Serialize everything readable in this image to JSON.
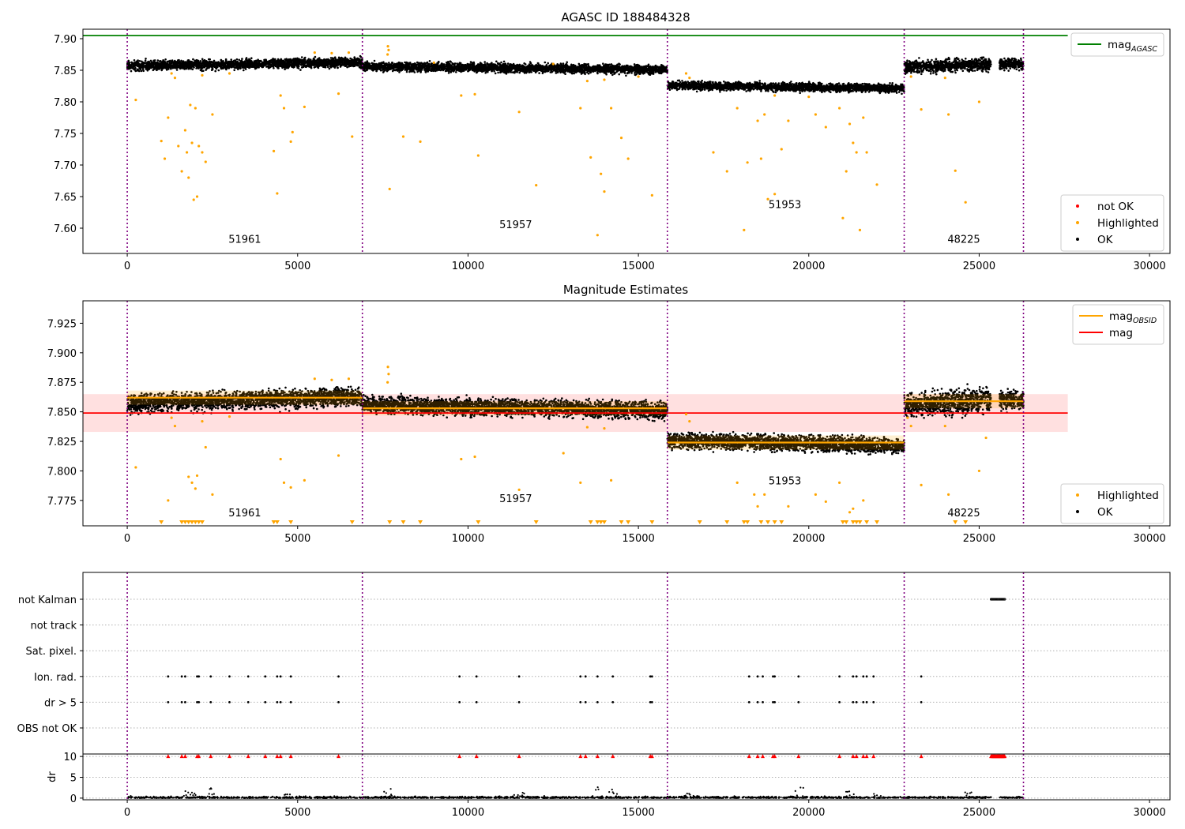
{
  "chart_data": [
    {
      "type": "scatter",
      "title": "AGASC ID 188484328",
      "xlabel": "",
      "ylabel": "",
      "xlim": [
        -1300,
        30600
      ],
      "ylim": [
        7.56,
        7.915
      ],
      "xticks": [
        0,
        5000,
        10000,
        15000,
        20000,
        25000,
        30000
      ],
      "yticks": [
        7.6,
        7.65,
        7.7,
        7.75,
        7.8,
        7.85,
        7.9
      ],
      "ytick_labels": [
        "7.60",
        "7.65",
        "7.70",
        "7.75",
        "7.80",
        "7.85",
        "7.90"
      ],
      "grid": false,
      "hlines": [
        {
          "name": "mag",
          "sub": "AGASC",
          "y": 7.905,
          "x_from": -1300,
          "x_to": 27600,
          "color": "#008000"
        }
      ],
      "obs_boundaries": [
        0,
        6900,
        15850,
        22800,
        26300
      ],
      "obs_labels": [
        {
          "text": "51961",
          "x": 3450,
          "y": 7.577
        },
        {
          "text": "51957",
          "x": 11400,
          "y": 7.6
        },
        {
          "text": "51953",
          "x": 19300,
          "y": 7.632
        },
        {
          "text": "48225",
          "x": 24550,
          "y": 7.577
        }
      ],
      "ok_segments": [
        {
          "x_start": 0,
          "x_end": 6900,
          "mean_start": 7.857,
          "mean_end": 7.863,
          "half_width": 0.013
        },
        {
          "x_start": 6900,
          "x_end": 15850,
          "mean_start": 7.856,
          "mean_end": 7.851,
          "half_width": 0.012
        },
        {
          "x_start": 15850,
          "x_end": 22800,
          "mean_start": 7.826,
          "mean_end": 7.821,
          "half_width": 0.011
        },
        {
          "x_start": 22800,
          "x_end": 25350,
          "mean_start": 7.855,
          "mean_end": 7.86,
          "half_width": 0.017
        },
        {
          "x_start": 25600,
          "x_end": 26300,
          "mean_start": 7.86,
          "mean_end": 7.86,
          "half_width": 0.014
        }
      ],
      "highlighted_points": [
        [
          1000,
          7.738
        ],
        [
          1100,
          7.71
        ],
        [
          1200,
          7.775
        ],
        [
          1500,
          7.73
        ],
        [
          1600,
          7.69
        ],
        [
          1700,
          7.755
        ],
        [
          1750,
          7.72
        ],
        [
          1800,
          7.68
        ],
        [
          1850,
          7.795
        ],
        [
          1900,
          7.735
        ],
        [
          1950,
          7.645
        ],
        [
          2000,
          7.79
        ],
        [
          2050,
          7.65
        ],
        [
          2100,
          7.73
        ],
        [
          2200,
          7.72
        ],
        [
          2300,
          7.705
        ],
        [
          2500,
          7.78
        ],
        [
          250,
          7.803
        ],
        [
          4300,
          7.722
        ],
        [
          4400,
          7.655
        ],
        [
          4500,
          7.81
        ],
        [
          4600,
          7.79
        ],
        [
          4800,
          7.737
        ],
        [
          4850,
          7.752
        ],
        [
          5200,
          7.792
        ],
        [
          6200,
          7.813
        ],
        [
          6600,
          7.745
        ],
        [
          7700,
          7.662
        ],
        [
          8100,
          7.745
        ],
        [
          8600,
          7.737
        ],
        [
          9800,
          7.81
        ],
        [
          10200,
          7.812
        ],
        [
          10300,
          7.715
        ],
        [
          11500,
          7.784
        ],
        [
          12000,
          7.668
        ],
        [
          13300,
          7.79
        ],
        [
          13600,
          7.712
        ],
        [
          13800,
          7.589
        ],
        [
          13900,
          7.686
        ],
        [
          14000,
          7.658
        ],
        [
          14200,
          7.79
        ],
        [
          14500,
          7.743
        ],
        [
          14700,
          7.71
        ],
        [
          15400,
          7.652
        ],
        [
          17200,
          7.72
        ],
        [
          17600,
          7.69
        ],
        [
          17900,
          7.79
        ],
        [
          18100,
          7.597
        ],
        [
          18200,
          7.704
        ],
        [
          18500,
          7.77
        ],
        [
          18600,
          7.71
        ],
        [
          18700,
          7.78
        ],
        [
          18800,
          7.646
        ],
        [
          19000,
          7.654
        ],
        [
          19200,
          7.725
        ],
        [
          19400,
          7.77
        ],
        [
          20200,
          7.78
        ],
        [
          20500,
          7.76
        ],
        [
          20900,
          7.79
        ],
        [
          21000,
          7.616
        ],
        [
          21100,
          7.69
        ],
        [
          21200,
          7.765
        ],
        [
          21300,
          7.735
        ],
        [
          21400,
          7.72
        ],
        [
          21500,
          7.597
        ],
        [
          21600,
          7.775
        ],
        [
          21700,
          7.72
        ],
        [
          22000,
          7.669
        ],
        [
          23300,
          7.788
        ],
        [
          24100,
          7.78
        ],
        [
          24300,
          7.691
        ],
        [
          24600,
          7.641
        ],
        [
          25000,
          7.8
        ],
        [
          7650,
          7.888
        ],
        [
          7670,
          7.882
        ],
        [
          7640,
          7.875
        ],
        [
          16400,
          7.845
        ],
        [
          16500,
          7.838
        ],
        [
          1300,
          7.845
        ],
        [
          1400,
          7.838
        ],
        [
          2200,
          7.842
        ],
        [
          3000,
          7.845
        ],
        [
          5500,
          7.878
        ],
        [
          6000,
          7.877
        ],
        [
          6500,
          7.878
        ],
        [
          9000,
          7.862
        ],
        [
          12500,
          7.86
        ],
        [
          13500,
          7.833
        ],
        [
          14000,
          7.835
        ],
        [
          15000,
          7.84
        ],
        [
          19000,
          7.81
        ],
        [
          20000,
          7.808
        ],
        [
          23000,
          7.84
        ],
        [
          24000,
          7.838
        ]
      ],
      "legends": [
        {
          "position": "upper-right",
          "entries": [
            {
              "label": "mag",
              "sub": "AGASC",
              "kind": "line",
              "color": "#008000"
            }
          ]
        },
        {
          "position": "lower-right",
          "entries": [
            {
              "label": "not OK",
              "kind": "dot",
              "color": "#ff0000"
            },
            {
              "label": "Highlighted",
              "kind": "dot",
              "color": "#ffa500"
            },
            {
              "label": "OK",
              "kind": "dot",
              "color": "#000000"
            }
          ]
        }
      ]
    },
    {
      "type": "scatter",
      "title": "Magnitude Estimates",
      "xlabel": "",
      "ylabel": "",
      "xlim": [
        -1300,
        30600
      ],
      "ylim": [
        7.7535,
        7.944
      ],
      "xticks": [
        0,
        5000,
        10000,
        15000,
        20000,
        25000,
        30000
      ],
      "yticks": [
        7.775,
        7.8,
        7.825,
        7.85,
        7.875,
        7.9,
        7.925
      ],
      "ytick_labels": [
        "7.775",
        "7.800",
        "7.825",
        "7.850",
        "7.875",
        "7.900",
        "7.925"
      ],
      "grid": false,
      "mag": {
        "name": "mag",
        "y": 7.849,
        "band": [
          7.833,
          7.865
        ],
        "x_from": -1300,
        "x_to": 27600,
        "color": "#ff0000"
      },
      "mag_obsid": [
        {
          "x_start": 0,
          "x_end": 6900,
          "y": 7.862
        },
        {
          "x_start": 6900,
          "x_end": 15850,
          "y": 7.853
        },
        {
          "x_start": 15850,
          "x_end": 22800,
          "y": 7.824
        },
        {
          "x_start": 22800,
          "x_end": 26300,
          "y": 7.859
        }
      ],
      "obs_boundaries": [
        0,
        6900,
        15850,
        22800,
        26300
      ],
      "obs_labels": [
        {
          "text": "51961",
          "x": 3450,
          "y": 7.7615
        },
        {
          "text": "51957",
          "x": 11400,
          "y": 7.7735
        },
        {
          "text": "51953",
          "x": 19300,
          "y": 7.7885
        },
        {
          "text": "48225",
          "x": 24550,
          "y": 7.7615
        }
      ],
      "ok_segments": [
        {
          "x_start": 0,
          "x_end": 6900,
          "mean_start": 7.857,
          "mean_end": 7.863,
          "half_width": 0.013
        },
        {
          "x_start": 6900,
          "x_end": 15850,
          "mean_start": 7.856,
          "mean_end": 7.851,
          "half_width": 0.012
        },
        {
          "x_start": 15850,
          "x_end": 22800,
          "mean_start": 7.826,
          "mean_end": 7.821,
          "half_width": 0.011
        },
        {
          "x_start": 22800,
          "x_end": 25350,
          "mean_start": 7.855,
          "mean_end": 7.86,
          "half_width": 0.017
        },
        {
          "x_start": 25600,
          "x_end": 26300,
          "mean_start": 7.86,
          "mean_end": 7.86,
          "half_width": 0.014
        }
      ],
      "highlighted_points": [
        [
          250,
          7.803
        ],
        [
          1200,
          7.775
        ],
        [
          1800,
          7.795
        ],
        [
          1900,
          7.79
        ],
        [
          2000,
          7.785
        ],
        [
          2050,
          7.796
        ],
        [
          2300,
          7.82
        ],
        [
          2500,
          7.78
        ],
        [
          4500,
          7.81
        ],
        [
          4600,
          7.79
        ],
        [
          4800,
          7.786
        ],
        [
          5200,
          7.792
        ],
        [
          6200,
          7.813
        ],
        [
          9800,
          7.81
        ],
        [
          10200,
          7.812
        ],
        [
          11500,
          7.784
        ],
        [
          12800,
          7.815
        ],
        [
          13300,
          7.79
        ],
        [
          14200,
          7.792
        ],
        [
          17900,
          7.79
        ],
        [
          18400,
          7.78
        ],
        [
          18500,
          7.77
        ],
        [
          18700,
          7.78
        ],
        [
          19400,
          7.77
        ],
        [
          20200,
          7.78
        ],
        [
          20500,
          7.774
        ],
        [
          20900,
          7.79
        ],
        [
          21200,
          7.765
        ],
        [
          21300,
          7.768
        ],
        [
          21600,
          7.775
        ],
        [
          23300,
          7.788
        ],
        [
          24100,
          7.78
        ],
        [
          25000,
          7.8
        ],
        [
          25200,
          7.828
        ],
        [
          7650,
          7.888
        ],
        [
          7670,
          7.882
        ],
        [
          7640,
          7.875
        ],
        [
          16400,
          7.848
        ],
        [
          16500,
          7.842
        ],
        [
          1300,
          7.845
        ],
        [
          1400,
          7.838
        ],
        [
          2200,
          7.842
        ],
        [
          3000,
          7.846
        ],
        [
          5500,
          7.878
        ],
        [
          6000,
          7.877
        ],
        [
          6500,
          7.878
        ],
        [
          13500,
          7.837
        ],
        [
          14000,
          7.836
        ],
        [
          23000,
          7.838
        ],
        [
          24000,
          7.838
        ],
        [
          22900,
          7.845
        ]
      ],
      "offscale_markers_x": [
        1000,
        1600,
        1700,
        1800,
        1900,
        2000,
        2100,
        2200,
        4300,
        4400,
        4800,
        6600,
        7700,
        8100,
        8600,
        10300,
        12000,
        13600,
        13800,
        13900,
        14000,
        14500,
        14700,
        15400,
        16800,
        17600,
        18100,
        18200,
        18600,
        18800,
        19000,
        19200,
        21000,
        21100,
        21300,
        21400,
        21500,
        21700,
        22000,
        24300,
        24600
      ],
      "legends": [
        {
          "position": "upper-right",
          "entries": [
            {
              "label": "mag",
              "sub": "OBSID",
              "kind": "line",
              "color": "#ffa500"
            },
            {
              "label": "mag",
              "kind": "line",
              "color": "#ff0000"
            }
          ]
        },
        {
          "position": "lower-right",
          "entries": [
            {
              "label": "Highlighted",
              "kind": "dot",
              "color": "#ffa500"
            },
            {
              "label": "OK",
              "kind": "dot",
              "color": "#000000"
            }
          ]
        }
      ]
    },
    {
      "type": "scatter",
      "title": "",
      "xlabel": "",
      "ylabel": "",
      "xlim": [
        -1300,
        30600
      ],
      "xticks": [
        0,
        5000,
        10000,
        15000,
        20000,
        25000,
        30000
      ],
      "grid": "horizontal dotted",
      "flag_rows": [
        "not Kalman",
        "not track",
        "Sat. pixel.",
        "Ion. rad.",
        "dr > 5",
        "OBS not OK"
      ],
      "flag_events": {
        "not Kalman": {
          "ranges": [
            [
              25350,
              25750
            ]
          ]
        },
        "Ion. rad.": {
          "x": [
            1200,
            1600,
            1700,
            2050,
            2100,
            2450,
            3000,
            3550,
            4050,
            4400,
            4500,
            4800,
            6200,
            9750,
            10250,
            11500,
            13300,
            13450,
            13800,
            14250,
            15350,
            15400,
            18250,
            18500,
            18650,
            18950,
            19000,
            19700,
            20900,
            21300,
            21400,
            21600,
            21700,
            21900,
            23300
          ]
        },
        "dr > 5": {
          "x": [
            1200,
            1600,
            1700,
            2050,
            2100,
            2450,
            3000,
            3550,
            4050,
            4400,
            4500,
            4800,
            6200,
            9750,
            10250,
            11500,
            13300,
            13450,
            13800,
            14250,
            15350,
            15400,
            18250,
            18500,
            18650,
            18950,
            19000,
            19700,
            20900,
            21300,
            21400,
            21600,
            21700,
            21900,
            23300
          ]
        }
      },
      "obs_boundaries": [
        0,
        6900,
        15850,
        22800,
        26300
      ]
    },
    {
      "type": "scatter",
      "title": "",
      "xlabel": "",
      "ylabel": "dr",
      "xlim": [
        -1300,
        30600
      ],
      "ylim": [
        -0.4,
        10.6
      ],
      "xticks": [
        0,
        5000,
        10000,
        15000,
        20000,
        25000,
        30000
      ],
      "yticks": [
        0,
        5,
        10
      ],
      "grid": "horizontal dotted",
      "dr_baseline": [
        [
          0,
          25350
        ],
        [
          25600,
          26300
        ]
      ],
      "dr_spikes": [
        [
          1800,
          2.0
        ],
        [
          2000,
          1.5
        ],
        [
          2400,
          2.6
        ],
        [
          4700,
          1.0
        ],
        [
          7650,
          2.3
        ],
        [
          11500,
          1.8
        ],
        [
          13800,
          2.9
        ],
        [
          14250,
          2.5
        ],
        [
          16450,
          1.5
        ],
        [
          16500,
          1.3
        ],
        [
          19700,
          3.5
        ],
        [
          21200,
          1.8
        ],
        [
          22000,
          1.2
        ],
        [
          24700,
          1.4
        ]
      ],
      "not_ok_markers_x": [
        1200,
        1600,
        1700,
        2050,
        2100,
        2450,
        3000,
        3550,
        4050,
        4400,
        4500,
        4800,
        6200,
        9750,
        10250,
        11500,
        13300,
        13450,
        13800,
        14250,
        15350,
        15400,
        18250,
        18500,
        18650,
        18950,
        19000,
        19700,
        20900,
        21300,
        21400,
        21600,
        21700,
        21900,
        23300
      ],
      "not_ok_range": [
        25350,
        25750
      ],
      "obs_boundaries": [
        0,
        6900,
        15850,
        22800,
        26300
      ]
    }
  ]
}
